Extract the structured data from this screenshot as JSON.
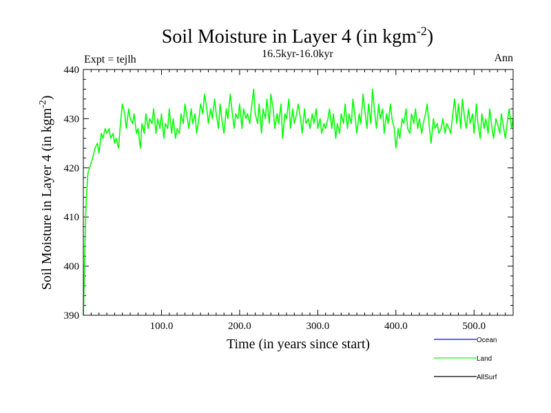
{
  "chart_data": {
    "type": "line",
    "title": "Soil Moisture in Layer 4 (in kgm",
    "title_sup": "-2",
    "title_close": ")",
    "subtitle": "16.5kyr-16.0kyr",
    "left_label": "Expt = tejlh",
    "right_label": "Ann",
    "xlabel": "Time (in years since start)",
    "ylabel": "Soil Moisture in Layer 4 (in kgm",
    "ylabel_sup": "-2",
    "ylabel_close": ")",
    "xlim": [
      0,
      550
    ],
    "ylim": [
      390,
      440
    ],
    "x_ticks": [
      100,
      200,
      300,
      400,
      500
    ],
    "x_tick_labels": [
      "100.0",
      "200.0",
      "300.0",
      "400.0",
      "500.0"
    ],
    "y_ticks": [
      390,
      400,
      410,
      420,
      430,
      440
    ],
    "y_tick_labels": [
      "390",
      "400",
      "410",
      "420",
      "430",
      "440"
    ],
    "legend": [
      {
        "name": "Ocean",
        "color": "#0000ff"
      },
      {
        "name": "Land",
        "color": "#00ff00"
      },
      {
        "name": "AllSurf",
        "color": "#000000"
      }
    ],
    "series": [
      {
        "name": "Land",
        "color": "#00ff00",
        "x": [
          0,
          1,
          2,
          3,
          4,
          5,
          6,
          8,
          10,
          12,
          15,
          18,
          20,
          23,
          25,
          28,
          30,
          33,
          35,
          38,
          40,
          42,
          45,
          48,
          50,
          53,
          55,
          58,
          60,
          63,
          65,
          68,
          70,
          73,
          75,
          78,
          80,
          83,
          85,
          88,
          90,
          93,
          95,
          98,
          100,
          103,
          105,
          108,
          110,
          113,
          115,
          118,
          120,
          123,
          125,
          128,
          130,
          133,
          135,
          138,
          140,
          143,
          145,
          148,
          150,
          153,
          155,
          158,
          160,
          163,
          165,
          168,
          170,
          173,
          175,
          178,
          180,
          183,
          185,
          188,
          190,
          193,
          195,
          198,
          200,
          203,
          205,
          208,
          210,
          213,
          215,
          218,
          220,
          223,
          225,
          228,
          230,
          233,
          235,
          238,
          240,
          243,
          245,
          248,
          250,
          253,
          255,
          258,
          260,
          263,
          265,
          268,
          270,
          273,
          275,
          278,
          280,
          283,
          285,
          288,
          290,
          293,
          295,
          298,
          300,
          303,
          305,
          308,
          310,
          313,
          315,
          318,
          320,
          323,
          325,
          328,
          330,
          333,
          335,
          338,
          340,
          343,
          345,
          348,
          350,
          353,
          355,
          358,
          360,
          363,
          365,
          368,
          370,
          373,
          375,
          378,
          380,
          383,
          385,
          388,
          390,
          393,
          395,
          398,
          400,
          403,
          405,
          408,
          410,
          413,
          415,
          418,
          420,
          423,
          425,
          428,
          430,
          433,
          435,
          438,
          440,
          443,
          445,
          448,
          450,
          453,
          455,
          458,
          460,
          463,
          465,
          468,
          470,
          473,
          475,
          478,
          480,
          483,
          485,
          488,
          490,
          493,
          495,
          498,
          500,
          503,
          505,
          508,
          510,
          513,
          515,
          518,
          520,
          523,
          525,
          528,
          530,
          533,
          535,
          538,
          540,
          543,
          545,
          548,
          550
        ],
        "values": [
          390,
          396,
          404,
          410,
          414,
          417,
          419,
          420,
          421,
          422,
          424,
          425,
          423,
          427,
          426,
          428,
          427,
          428,
          426,
          427,
          425,
          426,
          424,
          430,
          433,
          431,
          428,
          432,
          430,
          429,
          431,
          427,
          428,
          424,
          429,
          427,
          431,
          428,
          430,
          429,
          432,
          427,
          430,
          428,
          431,
          426,
          429,
          428,
          432,
          427,
          430,
          426,
          428,
          427,
          431,
          429,
          433,
          430,
          428,
          432,
          429,
          431,
          427,
          430,
          433,
          431,
          435,
          432,
          429,
          432,
          430,
          434,
          431,
          428,
          433,
          429,
          427,
          432,
          430,
          435,
          432,
          428,
          431,
          430,
          433,
          428,
          432,
          430,
          431,
          429,
          432,
          436,
          431,
          429,
          433,
          427,
          432,
          430,
          434,
          429,
          435,
          432,
          428,
          431,
          429,
          433,
          426,
          431,
          430,
          434,
          428,
          432,
          429,
          431,
          433,
          430,
          427,
          432,
          429,
          430,
          428,
          431,
          429,
          432,
          428,
          430,
          427,
          429,
          428,
          430,
          432,
          428,
          431,
          426,
          429,
          427,
          431,
          429,
          433,
          428,
          431,
          429,
          434,
          430,
          427,
          431,
          429,
          435,
          432,
          428,
          433,
          429,
          436,
          431,
          428,
          433,
          430,
          432,
          427,
          431,
          429,
          433,
          430,
          428,
          424,
          428,
          426,
          430,
          429,
          432,
          428,
          427,
          431,
          429,
          432,
          428,
          430,
          427,
          429,
          431,
          433,
          428,
          425,
          430,
          428,
          429,
          427,
          428,
          430,
          427,
          429,
          428,
          427,
          431,
          434,
          429,
          433,
          428,
          434,
          430,
          428,
          432,
          429,
          431,
          427,
          433,
          429,
          426,
          431,
          428,
          430,
          427,
          432,
          428,
          426,
          430,
          429,
          427,
          431,
          428,
          426,
          430,
          432,
          428,
          430
        ]
      }
    ]
  }
}
